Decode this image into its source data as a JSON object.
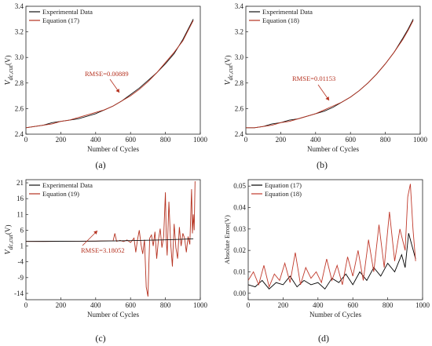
{
  "colors": {
    "experimental": "#111111",
    "eq17": "#b5311f",
    "eq18": "#b5311f",
    "eq19": "#b5311f",
    "eq17_err": "#000000",
    "eq18_err": "#c0392b",
    "annotation": "#b5311f"
  },
  "chart_data": [
    {
      "panel": "(a)",
      "type": "line",
      "xlabel": "Number of Cycles",
      "ylabel": "V_dc,cut(V)",
      "ylabel_main": "V",
      "ylabel_sub": "dc,cut",
      "ylabel_unit": "(V)",
      "xlim": [
        0,
        1000
      ],
      "ylim": [
        2.4,
        3.4
      ],
      "xticks": [
        "0",
        "200",
        "400",
        "600",
        "800",
        "1000"
      ],
      "yticks": [
        "2.4",
        "2.6",
        "2.8",
        "3.0",
        "3.2",
        "3.4"
      ],
      "legend": [
        "Experimental Data",
        "Equation (17)"
      ],
      "legend_position": "top-left",
      "annotation": "RMSE=0.00889",
      "series": [
        {
          "name": "Experimental Data",
          "x": [
            0,
            50,
            100,
            150,
            200,
            250,
            300,
            350,
            400,
            450,
            500,
            550,
            600,
            650,
            700,
            750,
            800,
            850,
            900,
            930,
            960
          ],
          "y": [
            2.45,
            2.46,
            2.47,
            2.49,
            2.5,
            2.51,
            2.52,
            2.54,
            2.56,
            2.59,
            2.62,
            2.66,
            2.71,
            2.76,
            2.82,
            2.88,
            2.95,
            3.03,
            3.14,
            3.22,
            3.3
          ]
        },
        {
          "name": "Equation (17)",
          "x": [
            0,
            50,
            100,
            150,
            200,
            250,
            300,
            350,
            400,
            450,
            500,
            550,
            600,
            650,
            700,
            750,
            800,
            850,
            900,
            930,
            960
          ],
          "y": [
            2.45,
            2.46,
            2.47,
            2.48,
            2.5,
            2.51,
            2.53,
            2.55,
            2.57,
            2.59,
            2.62,
            2.66,
            2.7,
            2.75,
            2.81,
            2.88,
            2.96,
            3.04,
            3.13,
            3.21,
            3.29
          ]
        }
      ]
    },
    {
      "panel": "(b)",
      "type": "line",
      "xlabel": "Number of Cycles",
      "ylabel": "V_dc,cut(V)",
      "ylabel_main": "V",
      "ylabel_sub": "dc,cut",
      "ylabel_unit": "(V)",
      "xlim": [
        0,
        1000
      ],
      "ylim": [
        2.4,
        3.4
      ],
      "xticks": [
        "0",
        "200",
        "400",
        "600",
        "800",
        "1000"
      ],
      "yticks": [
        "2.4",
        "2.6",
        "2.8",
        "3.0",
        "3.2",
        "3.4"
      ],
      "legend": [
        "Experimental Data",
        "Equation (18)"
      ],
      "legend_position": "top-left",
      "annotation": "RMSE=0.01153",
      "series": [
        {
          "name": "Experimental Data",
          "x": [
            0,
            50,
            100,
            150,
            200,
            250,
            300,
            350,
            400,
            450,
            500,
            550,
            600,
            650,
            700,
            750,
            800,
            850,
            900,
            930,
            960
          ],
          "y": [
            2.45,
            2.45,
            2.46,
            2.48,
            2.49,
            2.51,
            2.52,
            2.54,
            2.56,
            2.58,
            2.61,
            2.65,
            2.69,
            2.74,
            2.8,
            2.87,
            2.95,
            3.04,
            3.15,
            3.22,
            3.3
          ]
        },
        {
          "name": "Equation (18)",
          "x": [
            0,
            50,
            100,
            150,
            200,
            250,
            300,
            350,
            400,
            450,
            500,
            550,
            600,
            650,
            700,
            750,
            800,
            850,
            900,
            930,
            960
          ],
          "y": [
            2.45,
            2.45,
            2.46,
            2.47,
            2.49,
            2.5,
            2.52,
            2.54,
            2.56,
            2.59,
            2.62,
            2.65,
            2.69,
            2.74,
            2.8,
            2.87,
            2.95,
            3.04,
            3.14,
            3.21,
            3.29
          ]
        }
      ]
    },
    {
      "panel": "(c)",
      "type": "line",
      "xlabel": "Number of Cycles",
      "ylabel": "V_dc,cut(V)",
      "ylabel_main": "V",
      "ylabel_sub": "dc,cut",
      "ylabel_unit": "(V)",
      "xlim": [
        0,
        1000
      ],
      "ylim": [
        -16,
        22
      ],
      "xticks": [
        "0",
        "200",
        "400",
        "600",
        "800",
        "1000"
      ],
      "yticks": [
        "-14",
        "-9",
        "-4",
        "1",
        "6",
        "11",
        "16",
        "21"
      ],
      "ytick_values": [
        -14,
        -9,
        -4,
        1,
        6,
        11,
        16,
        21
      ],
      "legend": [
        "Experimental Data",
        "Equation (19)"
      ],
      "legend_position": "top-left",
      "annotation": "RMSE=3.18052",
      "series": [
        {
          "name": "Experimental Data",
          "x": [
            0,
            100,
            200,
            300,
            400,
            500,
            600,
            700,
            800,
            900,
            960
          ],
          "y": [
            2.45,
            2.47,
            2.5,
            2.52,
            2.56,
            2.62,
            2.71,
            2.82,
            2.95,
            3.14,
            3.3
          ]
        },
        {
          "name": "Equation (19)",
          "x": [
            0,
            100,
            200,
            300,
            400,
            480,
            500,
            510,
            520,
            540,
            560,
            580,
            600,
            620,
            630,
            640,
            650,
            660,
            670,
            680,
            690,
            700,
            705,
            710,
            720,
            730,
            740,
            750,
            760,
            770,
            780,
            790,
            800,
            805,
            810,
            820,
            830,
            840,
            850,
            860,
            870,
            880,
            890,
            900,
            910,
            920,
            930,
            940,
            950,
            955,
            960,
            965,
            970
          ],
          "y": [
            2.45,
            2.47,
            2.5,
            2.52,
            2.56,
            2.6,
            2.6,
            5.0,
            2.5,
            2.8,
            2.4,
            2.9,
            2.1,
            3.5,
            -1.0,
            3.0,
            6.0,
            1.5,
            -1.5,
            3.0,
            -12.0,
            -15.0,
            -5.0,
            3.5,
            4.5,
            1.0,
            5.5,
            -3.0,
            3.0,
            6.5,
            0.5,
            4.0,
            18.0,
            3.0,
            -2.0,
            15.0,
            2.0,
            -5.5,
            8.0,
            0.5,
            -3.0,
            7.0,
            1.0,
            5.0,
            3.5,
            -1.0,
            4.0,
            1.5,
            19.0,
            5.0,
            11.0,
            6.0,
            21.5
          ]
        }
      ]
    },
    {
      "panel": "(d)",
      "type": "line",
      "xlabel": "Number of Cycles",
      "ylabel": "Absolute Error(V)",
      "xlim": [
        0,
        1000
      ],
      "ylim": [
        -0.003,
        0.053
      ],
      "xticks": [
        "0",
        "200",
        "400",
        "600",
        "800",
        "1000"
      ],
      "yticks": [
        "0.00",
        "0.01",
        "0.02",
        "0.03",
        "0.04",
        "0.05"
      ],
      "ytick_values": [
        0.0,
        0.01,
        0.02,
        0.03,
        0.04,
        0.05
      ],
      "legend": [
        "Equation (17)",
        "Equation (18)"
      ],
      "legend_position": "top-left",
      "series": [
        {
          "name": "Equation (17)",
          "x": [
            0,
            40,
            80,
            120,
            160,
            200,
            240,
            280,
            320,
            360,
            400,
            440,
            480,
            520,
            560,
            600,
            640,
            680,
            720,
            760,
            800,
            840,
            880,
            900,
            920,
            940,
            960
          ],
          "y": [
            0.004,
            0.003,
            0.006,
            0.002,
            0.005,
            0.004,
            0.008,
            0.003,
            0.006,
            0.004,
            0.005,
            0.002,
            0.007,
            0.005,
            0.009,
            0.004,
            0.01,
            0.006,
            0.012,
            0.008,
            0.014,
            0.01,
            0.018,
            0.012,
            0.028,
            0.022,
            0.016
          ]
        },
        {
          "name": "Equation (18)",
          "x": [
            0,
            30,
            60,
            90,
            120,
            150,
            180,
            210,
            240,
            270,
            300,
            330,
            360,
            390,
            420,
            450,
            480,
            510,
            540,
            570,
            600,
            630,
            660,
            690,
            720,
            750,
            780,
            810,
            840,
            870,
            900,
            915,
            930,
            945,
            960
          ],
          "y": [
            0.006,
            0.01,
            0.004,
            0.013,
            0.003,
            0.009,
            0.006,
            0.014,
            0.005,
            0.019,
            0.004,
            0.012,
            0.007,
            0.01,
            0.005,
            0.016,
            0.006,
            0.013,
            0.004,
            0.017,
            0.008,
            0.02,
            0.006,
            0.025,
            0.01,
            0.032,
            0.012,
            0.038,
            0.015,
            0.03,
            0.02,
            0.045,
            0.051,
            0.03,
            0.015
          ]
        }
      ]
    }
  ]
}
